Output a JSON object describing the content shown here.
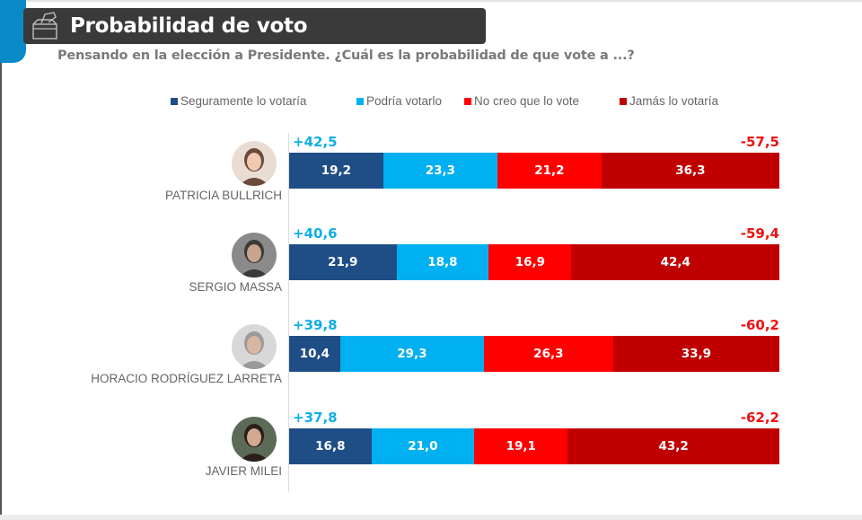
{
  "header": {
    "title": "Probabilidad de voto",
    "subtitle": "Pensando en la elección a Presidente. ¿Cuál es la probabilidad de que vote a ...?",
    "icon": "ballot-box-icon"
  },
  "colors": {
    "accent": "#0a8bc7",
    "title_bg": "#3a3a3a",
    "positive_label": "#10aee8",
    "negative_label": "#ee1111"
  },
  "chart_data": {
    "type": "bar",
    "orientation": "horizontal",
    "stacked": true,
    "title": "Probabilidad de voto",
    "subtitle": "Pensando en la elección a Presidente. ¿Cuál es la probabilidad de que vote a ...?",
    "xlabel": "",
    "ylabel": "",
    "xlim": [
      0,
      100
    ],
    "grid": false,
    "legend_position": "top",
    "categories": [
      "PATRICIA BULLRICH",
      "SERGIO MASSA",
      "HORACIO RODRÍGUEZ LARRETA",
      "JAVIER MILEI"
    ],
    "series": [
      {
        "name": "Seguramente lo votaría",
        "color": "#1f4e87",
        "values": [
          19.2,
          21.9,
          10.4,
          16.8
        ],
        "labels": [
          "19,2",
          "21,9",
          "10,4",
          "16,8"
        ]
      },
      {
        "name": "Podría votarlo",
        "color": "#00b0f0",
        "values": [
          23.3,
          18.8,
          29.3,
          21.0
        ],
        "labels": [
          "23,3",
          "18,8",
          "29,3",
          "21,0"
        ]
      },
      {
        "name": "No creo que lo vote",
        "color": "#ff0000",
        "values": [
          21.2,
          16.9,
          26.3,
          19.1
        ],
        "labels": [
          "21,2",
          "16,9",
          "26,3",
          "19,1"
        ]
      },
      {
        "name": "Jamás lo votaría",
        "color": "#c00000",
        "values": [
          36.3,
          42.4,
          33.9,
          43.2
        ],
        "labels": [
          "36,3",
          "42,4",
          "33,9",
          "43,2"
        ]
      }
    ],
    "annotations": {
      "positive_totals": [
        "+42,5",
        "+40,6",
        "+39,8",
        "+37,8"
      ],
      "negative_totals": [
        "-57,5",
        "-59,4",
        "-60,2",
        "-62,2"
      ]
    }
  },
  "candidates": [
    {
      "name": "PATRICIA BULLRICH",
      "avatar": "photo-avatar"
    },
    {
      "name": "SERGIO MASSA",
      "avatar": "photo-avatar"
    },
    {
      "name": "HORACIO RODRÍGUEZ LARRETA",
      "avatar": "photo-avatar"
    },
    {
      "name": "JAVIER MILEI",
      "avatar": "photo-avatar"
    }
  ]
}
